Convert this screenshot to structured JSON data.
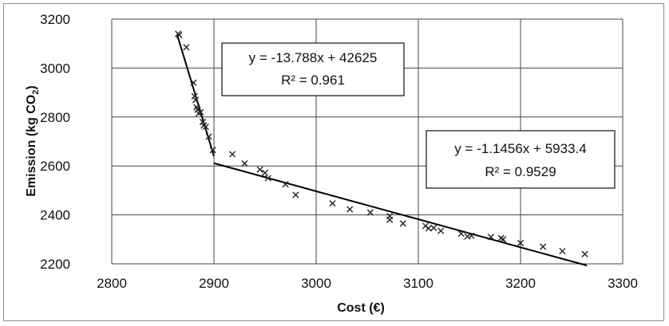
{
  "chart_data": {
    "type": "scatter",
    "xlabel": "Cost (€)",
    "ylabel": "Emission (kg CO2)",
    "xlim": [
      2800,
      3300
    ],
    "ylim": [
      2200,
      3200
    ],
    "x_ticks": [
      "2800",
      "2900",
      "3000",
      "3100",
      "3200",
      "3300"
    ],
    "y_ticks": [
      "2200",
      "2400",
      "2600",
      "2800",
      "3000",
      "3200"
    ],
    "grid": "vertical and horizontal major gridlines",
    "marker": "x",
    "points": [
      [
        2865,
        3140
      ],
      [
        2866,
        3135
      ],
      [
        2873,
        3085
      ],
      [
        2880,
        2940
      ],
      [
        2881,
        2885
      ],
      [
        2882,
        2870
      ],
      [
        2883,
        2840
      ],
      [
        2884,
        2830
      ],
      [
        2885,
        2815
      ],
      [
        2887,
        2820
      ],
      [
        2889,
        2780
      ],
      [
        2890,
        2765
      ],
      [
        2892,
        2760
      ],
      [
        2895,
        2720
      ],
      [
        2899,
        2665
      ],
      [
        2918,
        2648
      ],
      [
        2930,
        2610
      ],
      [
        2945,
        2585
      ],
      [
        2950,
        2572
      ],
      [
        2953,
        2550
      ],
      [
        2970,
        2525
      ],
      [
        2980,
        2482
      ],
      [
        3016,
        2447
      ],
      [
        3033,
        2423
      ],
      [
        3053,
        2410
      ],
      [
        3072,
        2395
      ],
      [
        3072,
        2380
      ],
      [
        3085,
        2365
      ],
      [
        3107,
        2355
      ],
      [
        3110,
        2345
      ],
      [
        3115,
        2347
      ],
      [
        3122,
        2335
      ],
      [
        3142,
        2323
      ],
      [
        3148,
        2312
      ],
      [
        3152,
        2315
      ],
      [
        3171,
        2310
      ],
      [
        3181,
        2305
      ],
      [
        3183,
        2300
      ],
      [
        3200,
        2285
      ],
      [
        3222,
        2270
      ],
      [
        3241,
        2252
      ],
      [
        3263,
        2240
      ]
    ],
    "trendlines": [
      {
        "equation": "y = -13.788x + 42625",
        "r2": "R² = 0.961",
        "slope": -13.788,
        "intercept": 42625,
        "x_range": [
          2864,
          2900
        ]
      },
      {
        "equation": "y = -1.1456x + 5933.4",
        "r2": "R² = 0.9529",
        "slope": -1.1456,
        "intercept": 5933.4,
        "x_range": [
          2900,
          3265
        ]
      }
    ]
  }
}
